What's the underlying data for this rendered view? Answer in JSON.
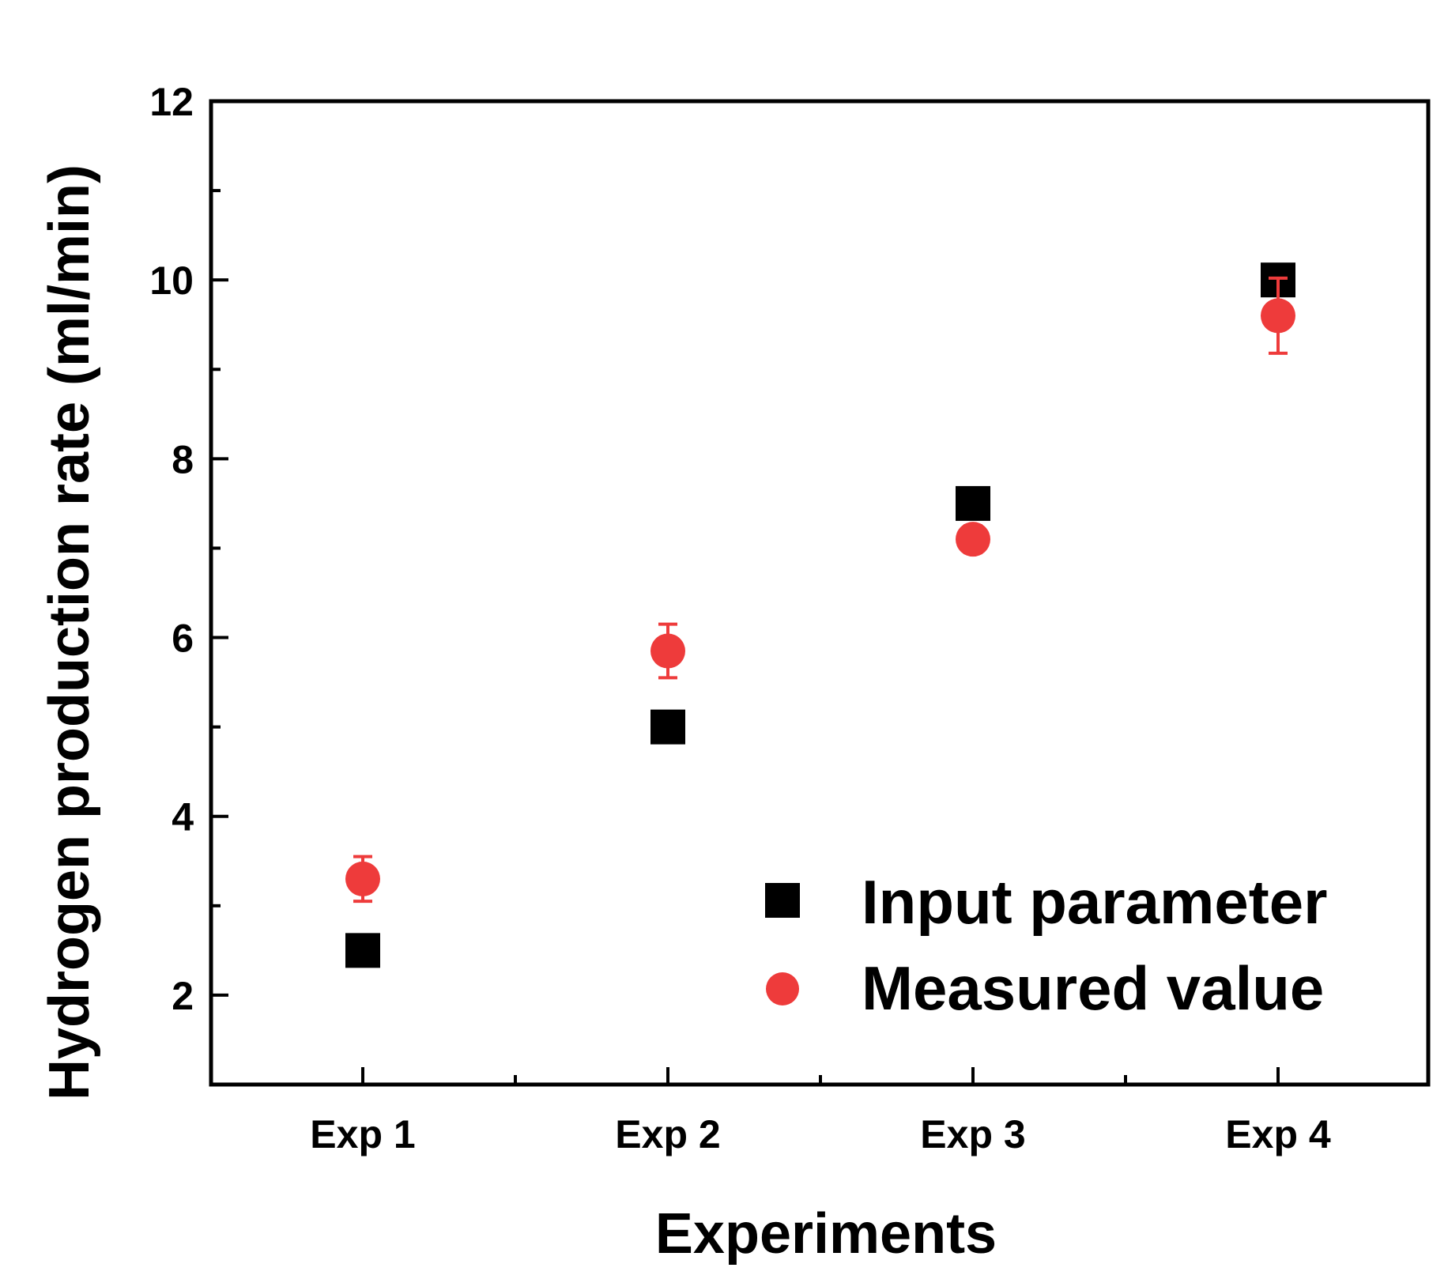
{
  "chart_data": {
    "type": "scatter",
    "title": "",
    "xlabel": "Experiments",
    "ylabel": "Hydrogen production rate (ml/min)",
    "categories": [
      "Exp 1",
      "Exp 2",
      "Exp 3",
      "Exp 4"
    ],
    "ylim": [
      1,
      12
    ],
    "yticks": [
      2,
      4,
      6,
      8,
      10,
      12
    ],
    "yticks_minor": [
      3,
      5,
      7,
      9,
      11
    ],
    "grid": false,
    "legend_position": "bottom-right",
    "series": [
      {
        "name": "Input parameter",
        "marker": "square",
        "color": "#000000",
        "values": [
          2.5,
          5.0,
          7.5,
          10.0
        ]
      },
      {
        "name": "Measured value",
        "marker": "circle",
        "color": "#ee3b3b",
        "values": [
          3.3,
          5.85,
          7.1,
          9.6
        ],
        "errors": [
          0.25,
          0.3,
          0.15,
          0.42
        ]
      }
    ]
  }
}
